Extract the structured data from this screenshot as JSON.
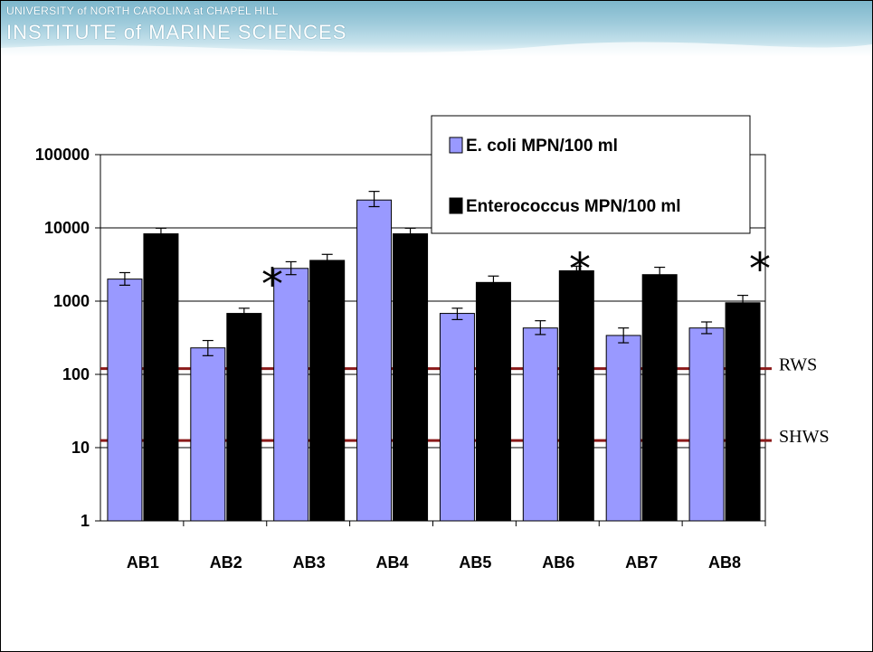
{
  "header": {
    "university": "UNIVERSITY of NORTH CAROLINA at CHAPEL HILL",
    "institute": "INSTITUTE of MARINE SCIENCES"
  },
  "chart_data": {
    "type": "bar",
    "scale": "log",
    "ylim": [
      1,
      100000
    ],
    "yticks": [
      {
        "value": 1,
        "label": "1"
      },
      {
        "value": 10,
        "label": "10"
      },
      {
        "value": 100,
        "label": "100"
      },
      {
        "value": 1000,
        "label": "1000"
      },
      {
        "value": 10000,
        "label": "10000"
      },
      {
        "value": 100000,
        "label": "100000"
      }
    ],
    "grid": true,
    "categories": [
      "AB1",
      "AB2",
      "AB3",
      "AB4",
      "AB5",
      "AB6",
      "AB7",
      "AB8"
    ],
    "series": [
      {
        "name": "E. coli MPN/100 ml",
        "color": "#9999ff",
        "values": [
          2000,
          230,
          2800,
          24000,
          680,
          430,
          340,
          430
        ],
        "err_low": [
          1650,
          180,
          2300,
          19500,
          560,
          350,
          270,
          360
        ],
        "err_high": [
          2450,
          290,
          3450,
          31500,
          800,
          540,
          430,
          520
        ]
      },
      {
        "name": "Enterococcus MPN/100 ml",
        "color": "#000000",
        "values": [
          8300,
          680,
          3600,
          8300,
          1800,
          2600,
          2300,
          950
        ],
        "err_low": [
          7000,
          570,
          3000,
          7000,
          1500,
          2200,
          1900,
          800
        ],
        "err_high": [
          9900,
          800,
          4350,
          9900,
          2200,
          3000,
          2900,
          1200
        ]
      }
    ],
    "legend": {
      "position": "top-right"
    },
    "reference_lines": [
      {
        "label": "RWS",
        "value": 120,
        "color": "#8b1a1a"
      },
      {
        "label": "SHWS",
        "value": 12.5,
        "color": "#8b1a1a"
      }
    ],
    "annotations": [
      {
        "text": "*",
        "category": "AB3"
      },
      {
        "text": "*",
        "category": "AB6"
      },
      {
        "text": "*",
        "category": "AB8"
      }
    ]
  }
}
